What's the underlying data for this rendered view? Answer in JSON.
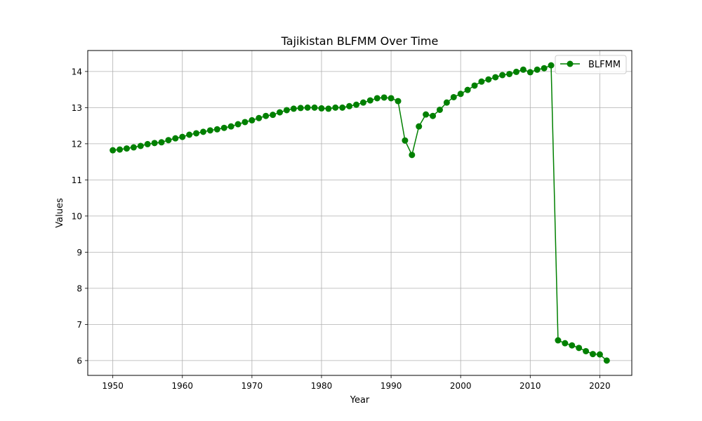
{
  "chart_data": {
    "type": "line",
    "title": "Tajikistan BLFMM Over Time",
    "xlabel": "Year",
    "ylabel": "Values",
    "xlim": [
      1946.4,
      2024.6
    ],
    "ylim": [
      5.59,
      14.58
    ],
    "xticks": [
      1950,
      1960,
      1970,
      1980,
      1990,
      2000,
      2010,
      2020
    ],
    "yticks": [
      6,
      7,
      8,
      9,
      10,
      11,
      12,
      13,
      14
    ],
    "grid": true,
    "legend_position": "top-right",
    "series": [
      {
        "name": "BLFMM",
        "color": "#008000",
        "marker": "circle",
        "x": [
          1950,
          1951,
          1952,
          1953,
          1954,
          1955,
          1956,
          1957,
          1958,
          1959,
          1960,
          1961,
          1962,
          1963,
          1964,
          1965,
          1966,
          1967,
          1968,
          1969,
          1970,
          1971,
          1972,
          1973,
          1974,
          1975,
          1976,
          1977,
          1978,
          1979,
          1980,
          1981,
          1982,
          1983,
          1984,
          1985,
          1986,
          1987,
          1988,
          1989,
          1990,
          1991,
          1992,
          1993,
          1994,
          1995,
          1996,
          1997,
          1998,
          1999,
          2000,
          2001,
          2002,
          2003,
          2004,
          2005,
          2006,
          2007,
          2008,
          2009,
          2010,
          2011,
          2012,
          2013,
          2014,
          2015,
          2016,
          2017,
          2018,
          2019,
          2020,
          2021
        ],
        "values": [
          11.82,
          11.84,
          11.87,
          11.9,
          11.94,
          11.99,
          12.02,
          12.04,
          12.1,
          12.15,
          12.19,
          12.25,
          12.29,
          12.33,
          12.37,
          12.4,
          12.44,
          12.48,
          12.54,
          12.6,
          12.65,
          12.71,
          12.77,
          12.8,
          12.87,
          12.93,
          12.97,
          12.99,
          13.0,
          13.0,
          12.98,
          12.97,
          13.0,
          13.0,
          13.04,
          13.08,
          13.14,
          13.2,
          13.26,
          13.28,
          13.26,
          13.18,
          12.09,
          11.69,
          12.48,
          12.81,
          12.77,
          12.94,
          13.14,
          13.29,
          13.38,
          13.49,
          13.61,
          13.72,
          13.78,
          13.84,
          13.9,
          13.93,
          13.99,
          14.05,
          13.98,
          14.05,
          14.09,
          14.17,
          6.56,
          6.48,
          6.42,
          6.35,
          6.26,
          6.18,
          6.17,
          6.0
        ]
      }
    ]
  }
}
